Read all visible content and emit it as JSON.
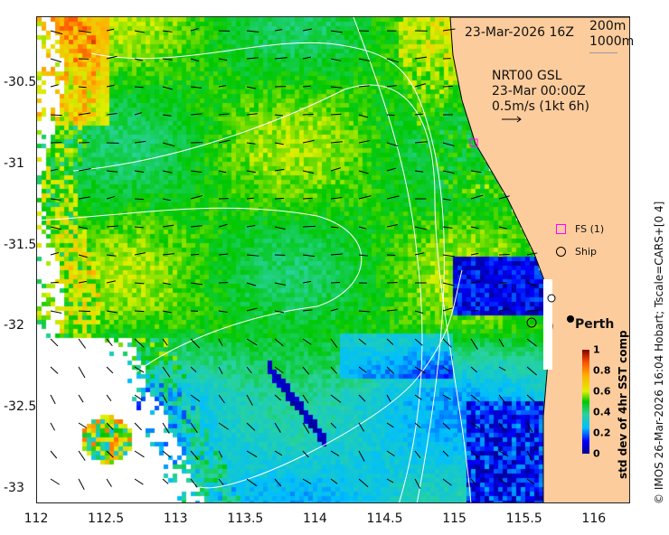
{
  "chart_data": {
    "type": "heatmap",
    "title": "23-Mar-2026 16Z",
    "x_ticks": [
      "112",
      "112.5",
      "113",
      "113.5",
      "114",
      "114.5",
      "115",
      "115.5",
      "116"
    ],
    "y_ticks": [
      "-30.5",
      "-31",
      "-31.5",
      "-32",
      "-32.5",
      "-33"
    ],
    "xlim": [
      112,
      116.3
    ],
    "ylim": [
      -33.1,
      -30.1
    ],
    "contour_labels": [
      "200m",
      "1000m"
    ],
    "current_info": {
      "line1": "NRT00 GSL",
      "line2": "23-Mar 00:00Z",
      "line3": "0.5m/s (1kt 6h)"
    },
    "legend": [
      {
        "label": "FS (1)",
        "marker": "magenta-square"
      },
      {
        "label": "Ship",
        "marker": "black-circle"
      }
    ],
    "city": {
      "name": "Perth",
      "lon": 115.86,
      "lat": -31.95
    },
    "colorbar": {
      "label": "std dev of 4hr SST comp",
      "ticks": [
        "0",
        "0.2",
        "0.4",
        "0.6",
        "0.8",
        "1"
      ],
      "range": [
        0,
        1
      ]
    },
    "credit": "© IMOS 26-Mar-2026 16:04 Hobart; Tscale=CARS+[0 4]"
  },
  "colors": {
    "land": "#fccc9c",
    "fs_marker": "#ff00ff"
  }
}
